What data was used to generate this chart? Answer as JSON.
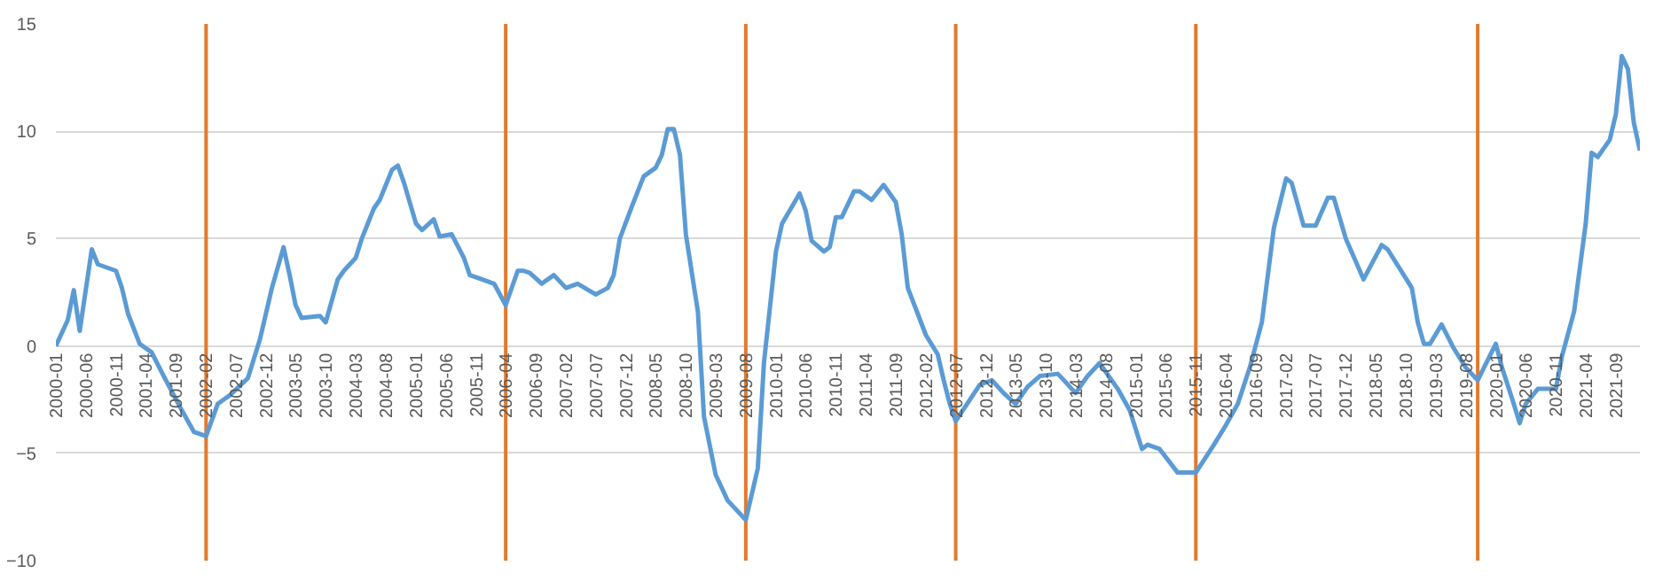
{
  "chart_data": {
    "type": "line",
    "x": [
      "2000-01",
      "2000-03",
      "2000-04",
      "2000-05",
      "2000-07",
      "2000-08",
      "2000-11",
      "2000-12",
      "2001-01",
      "2001-03",
      "2001-05",
      "2001-07",
      "2001-10",
      "2001-12",
      "2002-02",
      "2002-04",
      "2002-06",
      "2002-09",
      "2002-11",
      "2003-01",
      "2003-03",
      "2003-04",
      "2003-05",
      "2003-06",
      "2003-09",
      "2003-10",
      "2003-12",
      "2004-01",
      "2004-03",
      "2004-04",
      "2004-06",
      "2004-07",
      "2004-09",
      "2004-10",
      "2004-11",
      "2005-01",
      "2005-02",
      "2005-04",
      "2005-05",
      "2005-07",
      "2005-09",
      "2005-10",
      "2005-12",
      "2006-02",
      "2006-04",
      "2006-06",
      "2006-07",
      "2006-08",
      "2006-10",
      "2006-12",
      "2007-02",
      "2007-04",
      "2007-07",
      "2007-09",
      "2007-10",
      "2007-11",
      "2008-01",
      "2008-03",
      "2008-05",
      "2008-06",
      "2008-07",
      "2008-08",
      "2008-09",
      "2008-10",
      "2008-12",
      "2009-01",
      "2009-03",
      "2009-05",
      "2009-08",
      "2009-10",
      "2009-11",
      "2010-01",
      "2010-02",
      "2010-05",
      "2010-06",
      "2010-07",
      "2010-09",
      "2010-10",
      "2010-11",
      "2010-12",
      "2011-02",
      "2011-03",
      "2011-05",
      "2011-07",
      "2011-09",
      "2011-10",
      "2011-11",
      "2012-02",
      "2012-04",
      "2012-05",
      "2012-06",
      "2012-07",
      "2012-11",
      "2013-01",
      "2013-03",
      "2013-05",
      "2013-07",
      "2013-09",
      "2013-12",
      "2014-01",
      "2014-03",
      "2014-05",
      "2014-07",
      "2014-10",
      "2014-12",
      "2015-02",
      "2015-03",
      "2015-05",
      "2015-08",
      "2015-10",
      "2015-11",
      "2016-02",
      "2016-04",
      "2016-06",
      "2016-08",
      "2016-10",
      "2016-12",
      "2017-02",
      "2017-03",
      "2017-05",
      "2017-07",
      "2017-09",
      "2017-10",
      "2017-12",
      "2018-03",
      "2018-06",
      "2018-07",
      "2018-11",
      "2018-12",
      "2019-01",
      "2019-02",
      "2019-04",
      "2019-06",
      "2019-08",
      "2019-10",
      "2020-01",
      "2020-02",
      "2020-04",
      "2020-05",
      "2020-06",
      "2020-08",
      "2020-11",
      "2020-12",
      "2021-02",
      "2021-04",
      "2021-05",
      "2021-06",
      "2021-08",
      "2021-09",
      "2021-10",
      "2021-11",
      "2021-12",
      "2022-01"
    ],
    "series": [
      {
        "color": "#5b9bd5",
        "values": [
          0,
          1.2,
          2.6,
          0.7,
          4.5,
          3.8,
          3.5,
          2.7,
          1.5,
          0.1,
          -0.3,
          -1.4,
          -3.0,
          -4.0,
          -4.2,
          -2.7,
          -2.3,
          -1.5,
          0.3,
          2.7,
          4.6,
          3.3,
          1.9,
          1.3,
          1.4,
          1.1,
          3.1,
          3.5,
          4.1,
          5.0,
          6.4,
          6.8,
          8.2,
          8.4,
          7.6,
          5.7,
          5.4,
          5.9,
          5.1,
          5.2,
          4.1,
          3.3,
          3.1,
          2.9,
          1.9,
          3.5,
          3.5,
          3.4,
          2.9,
          3.3,
          2.7,
          2.9,
          2.4,
          2.7,
          3.3,
          5.0,
          6.5,
          7.9,
          8.3,
          8.9,
          10.1,
          10.1,
          8.9,
          5.2,
          1.6,
          -3.3,
          -6.0,
          -7.2,
          -8.1,
          -5.7,
          -0.8,
          4.4,
          5.7,
          7.1,
          6.3,
          4.9,
          4.4,
          4.6,
          6.0,
          6.0,
          7.2,
          7.2,
          6.8,
          7.5,
          6.7,
          5.2,
          2.7,
          0.5,
          -0.4,
          -1.6,
          -2.7,
          -3.5,
          -1.8,
          -1.6,
          -2.2,
          -2.7,
          -1.9,
          -1.4,
          -1.3,
          -1.6,
          -2.2,
          -1.4,
          -0.8,
          -2.0,
          -3.0,
          -4.8,
          -4.6,
          -4.8,
          -5.9,
          -5.9,
          -5.9,
          -4.6,
          -3.7,
          -2.7,
          -1.0,
          1.1,
          5.5,
          7.8,
          7.6,
          5.6,
          5.6,
          6.9,
          6.9,
          5.0,
          3.1,
          4.7,
          4.5,
          2.7,
          1.1,
          0.1,
          0.1,
          1.0,
          -0.1,
          -1.0,
          -1.6,
          0.1,
          -1.0,
          -2.7,
          -3.6,
          -2.7,
          -2.0,
          -2.0,
          -0.5,
          1.6,
          5.7,
          9.0,
          8.8,
          9.6,
          10.8,
          13.5,
          12.9,
          10.4,
          9.1
        ]
      }
    ],
    "xlim": [
      "2000-01",
      "2022-01"
    ],
    "xticks": [
      "2000-01",
      "2000-06",
      "2000-11",
      "2001-04",
      "2001-09",
      "2002-02",
      "2002-07",
      "2002-12",
      "2003-05",
      "2003-10",
      "2004-03",
      "2004-08",
      "2005-01",
      "2005-06",
      "2005-11",
      "2006-04",
      "2006-09",
      "2007-02",
      "2007-07",
      "2007-12",
      "2008-05",
      "2008-10",
      "2009-03",
      "2009-08",
      "2010-01",
      "2010-06",
      "2010-11",
      "2011-04",
      "2011-09",
      "2012-02",
      "2012-07",
      "2012-12",
      "2013-05",
      "2013-10",
      "2014-03",
      "2014-08",
      "2015-01",
      "2015-06",
      "2015-11",
      "2016-04",
      "2016-09",
      "2017-02",
      "2017-07",
      "2017-12",
      "2018-05",
      "2018-10",
      "2019-03",
      "2019-08",
      "2020-01",
      "2020-06",
      "2020-11",
      "2021-04",
      "2021-09"
    ],
    "ylim": [
      -10,
      15
    ],
    "yticks": [
      -10,
      -5,
      0,
      5,
      10,
      15
    ],
    "grid": "y",
    "ref_lines": [
      {
        "axis": "x",
        "value": "2002-02",
        "color": "#e07b2e"
      },
      {
        "axis": "x",
        "value": "2006-04",
        "color": "#e07b2e"
      },
      {
        "axis": "x",
        "value": "2009-08",
        "color": "#e07b2e"
      },
      {
        "axis": "x",
        "value": "2012-07",
        "color": "#e07b2e"
      },
      {
        "axis": "x",
        "value": "2015-11",
        "color": "#e07b2e"
      },
      {
        "axis": "x",
        "value": "2019-10",
        "color": "#e07b2e"
      }
    ]
  }
}
